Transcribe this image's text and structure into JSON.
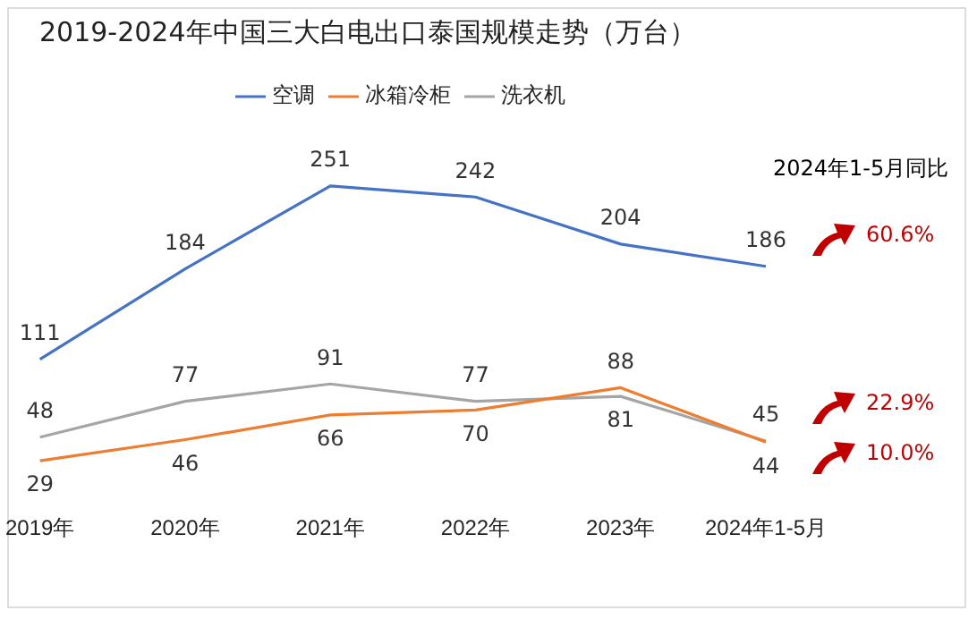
{
  "chart_data": {
    "type": "line",
    "title": "2019-2024年中国三大白电出口泰国规模走势（万台）",
    "categories": [
      "2019年",
      "2020年",
      "2021年",
      "2022年",
      "2023年",
      "2024年1-5月"
    ],
    "series": [
      {
        "name": "空调",
        "color": "#4472c4",
        "values": [
          111,
          184,
          251,
          242,
          204,
          186
        ]
      },
      {
        "name": "冰箱冷柜",
        "color": "#ed7d31",
        "values": [
          29,
          46,
          66,
          70,
          88,
          44
        ]
      },
      {
        "name": "洗衣机",
        "color": "#a5a5a5",
        "values": [
          48,
          77,
          91,
          77,
          81,
          45
        ]
      }
    ],
    "data_labels": true,
    "grid": false,
    "legend": "top",
    "tick_labels": "x",
    "annotations": [
      "2024年1-5月同比",
      "60.6%",
      "22.9%",
      "10.0%"
    ]
  }
}
